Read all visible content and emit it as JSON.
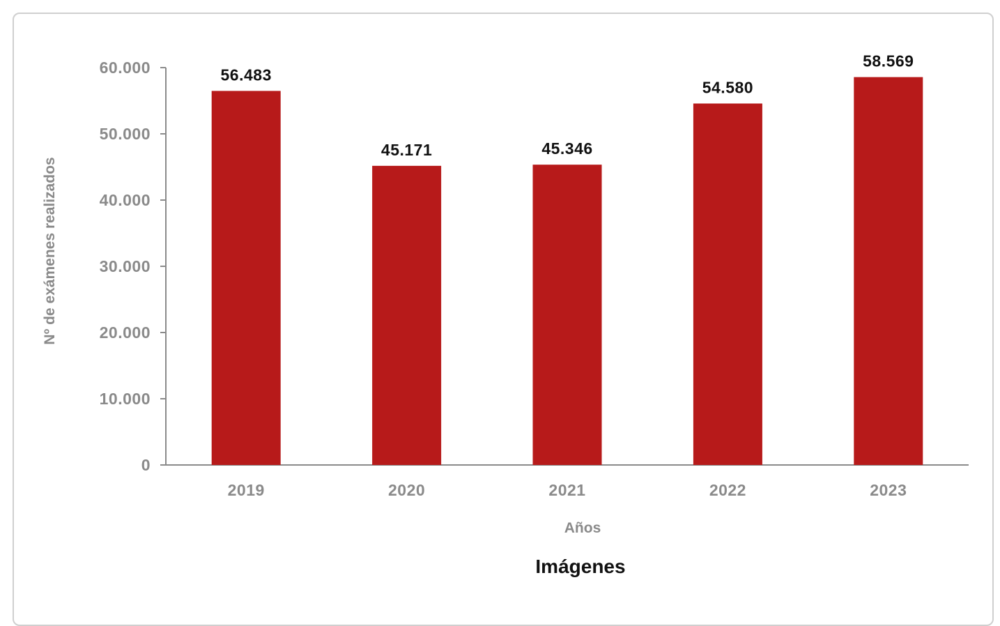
{
  "chart_data": {
    "type": "bar",
    "title": "Imágenes",
    "xlabel": "Años",
    "ylabel": "Nº de exámenes realizados",
    "categories": [
      "2019",
      "2020",
      "2021",
      "2022",
      "2023"
    ],
    "values": [
      56483,
      45171,
      45346,
      54580,
      58569
    ],
    "value_labels": [
      "56.483",
      "45.171",
      "45.346",
      "54.580",
      "58.569"
    ],
    "y_ticks": [
      0,
      10000,
      20000,
      30000,
      40000,
      50000,
      60000
    ],
    "y_tick_labels": [
      "0",
      "10.000",
      "20.000",
      "30.000",
      "40.000",
      "50.000",
      "60.000"
    ],
    "ylim": [
      0,
      60000
    ],
    "grid": false,
    "legend": "none",
    "bar_color": "#b71a1a",
    "axis_color": "#8a8a8a"
  }
}
